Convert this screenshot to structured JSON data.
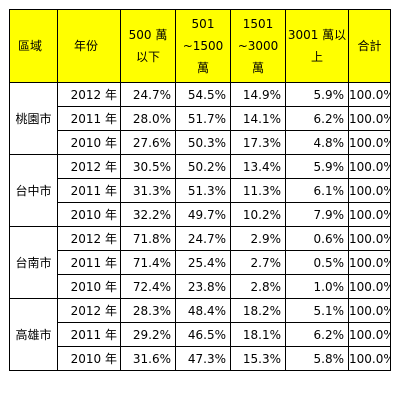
{
  "table": {
    "headers": {
      "region": "區域",
      "year": "年份",
      "under500": [
        "500 萬",
        "以下"
      ],
      "501to1500": [
        "501",
        "~1500",
        "萬"
      ],
      "1501to3000": [
        "1501",
        "~3000",
        "萬"
      ],
      "over3001": [
        "3001 萬以",
        "上"
      ],
      "total": "合計"
    },
    "groups": [
      {
        "region": "桃園市",
        "rows": [
          {
            "year": "2012 年",
            "under500": "24.7%",
            "r501_1500": "54.5%",
            "r1501_3000": "14.9%",
            "over3001": "5.9%",
            "total": "100.0%"
          },
          {
            "year": "2011 年",
            "under500": "28.0%",
            "r501_1500": "51.7%",
            "r1501_3000": "14.1%",
            "over3001": "6.2%",
            "total": "100.0%"
          },
          {
            "year": "2010 年",
            "under500": "27.6%",
            "r501_1500": "50.3%",
            "r1501_3000": "17.3%",
            "over3001": "4.8%",
            "total": "100.0%"
          }
        ]
      },
      {
        "region": "台中市",
        "rows": [
          {
            "year": "2012 年",
            "under500": "30.5%",
            "r501_1500": "50.2%",
            "r1501_3000": "13.4%",
            "over3001": "5.9%",
            "total": "100.0%"
          },
          {
            "year": "2011 年",
            "under500": "31.3%",
            "r501_1500": "51.3%",
            "r1501_3000": "11.3%",
            "over3001": "6.1%",
            "total": "100.0%"
          },
          {
            "year": "2010 年",
            "under500": "32.2%",
            "r501_1500": "49.7%",
            "r1501_3000": "10.2%",
            "over3001": "7.9%",
            "total": "100.0%"
          }
        ]
      },
      {
        "region": "台南市",
        "rows": [
          {
            "year": "2012 年",
            "under500": "71.8%",
            "r501_1500": "24.7%",
            "r1501_3000": "2.9%",
            "over3001": "0.6%",
            "total": "100.0%"
          },
          {
            "year": "2011 年",
            "under500": "71.4%",
            "r501_1500": "25.4%",
            "r1501_3000": "2.7%",
            "over3001": "0.5%",
            "total": "100.0%"
          },
          {
            "year": "2010 年",
            "under500": "72.4%",
            "r501_1500": "23.8%",
            "r1501_3000": "2.8%",
            "over3001": "1.0%",
            "total": "100.0%"
          }
        ]
      },
      {
        "region": "高雄市",
        "rows": [
          {
            "year": "2012 年",
            "under500": "28.3%",
            "r501_1500": "48.4%",
            "r1501_3000": "18.2%",
            "over3001": "5.1%",
            "total": "100.0%"
          },
          {
            "year": "2011 年",
            "under500": "29.2%",
            "r501_1500": "46.5%",
            "r1501_3000": "18.1%",
            "over3001": "6.2%",
            "total": "100.0%"
          },
          {
            "year": "2010 年",
            "under500": "31.6%",
            "r501_1500": "47.3%",
            "r1501_3000": "15.3%",
            "over3001": "5.8%",
            "total": "100.0%"
          }
        ]
      }
    ]
  },
  "colors": {
    "header_background": "#ffff00",
    "border": "#000000"
  }
}
